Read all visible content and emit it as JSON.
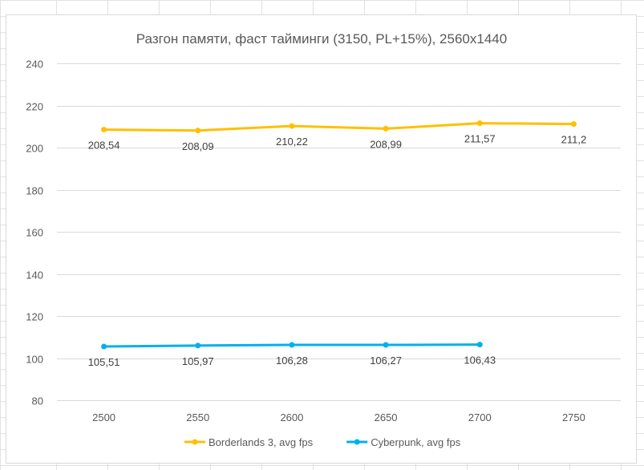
{
  "chart_data": {
    "type": "line",
    "title": "Разгон памяти, фаст тайминги (3150, PL+15%), 2560x1440",
    "xlabel": "",
    "ylabel": "",
    "categories": [
      "2500",
      "2550",
      "2600",
      "2650",
      "2700",
      "2750"
    ],
    "ylim": [
      80,
      240
    ],
    "yticks": [
      80,
      100,
      120,
      140,
      160,
      180,
      200,
      220,
      240
    ],
    "grid": true,
    "legend_position": "bottom",
    "series": [
      {
        "name": "Borderlands 3, avg fps",
        "color": "#FFC000",
        "values": [
          208.54,
          208.09,
          210.22,
          208.99,
          211.57,
          211.2
        ],
        "labels": [
          "208,54",
          "208,09",
          "210,22",
          "208,99",
          "211,57",
          "211,2"
        ]
      },
      {
        "name": "Cyberpunk, avg fps",
        "color": "#00B0F0",
        "values": [
          105.51,
          105.97,
          106.28,
          106.27,
          106.43,
          null
        ],
        "labels": [
          "105,51",
          "105,97",
          "106,28",
          "106,27",
          "106,43",
          null
        ]
      }
    ]
  }
}
